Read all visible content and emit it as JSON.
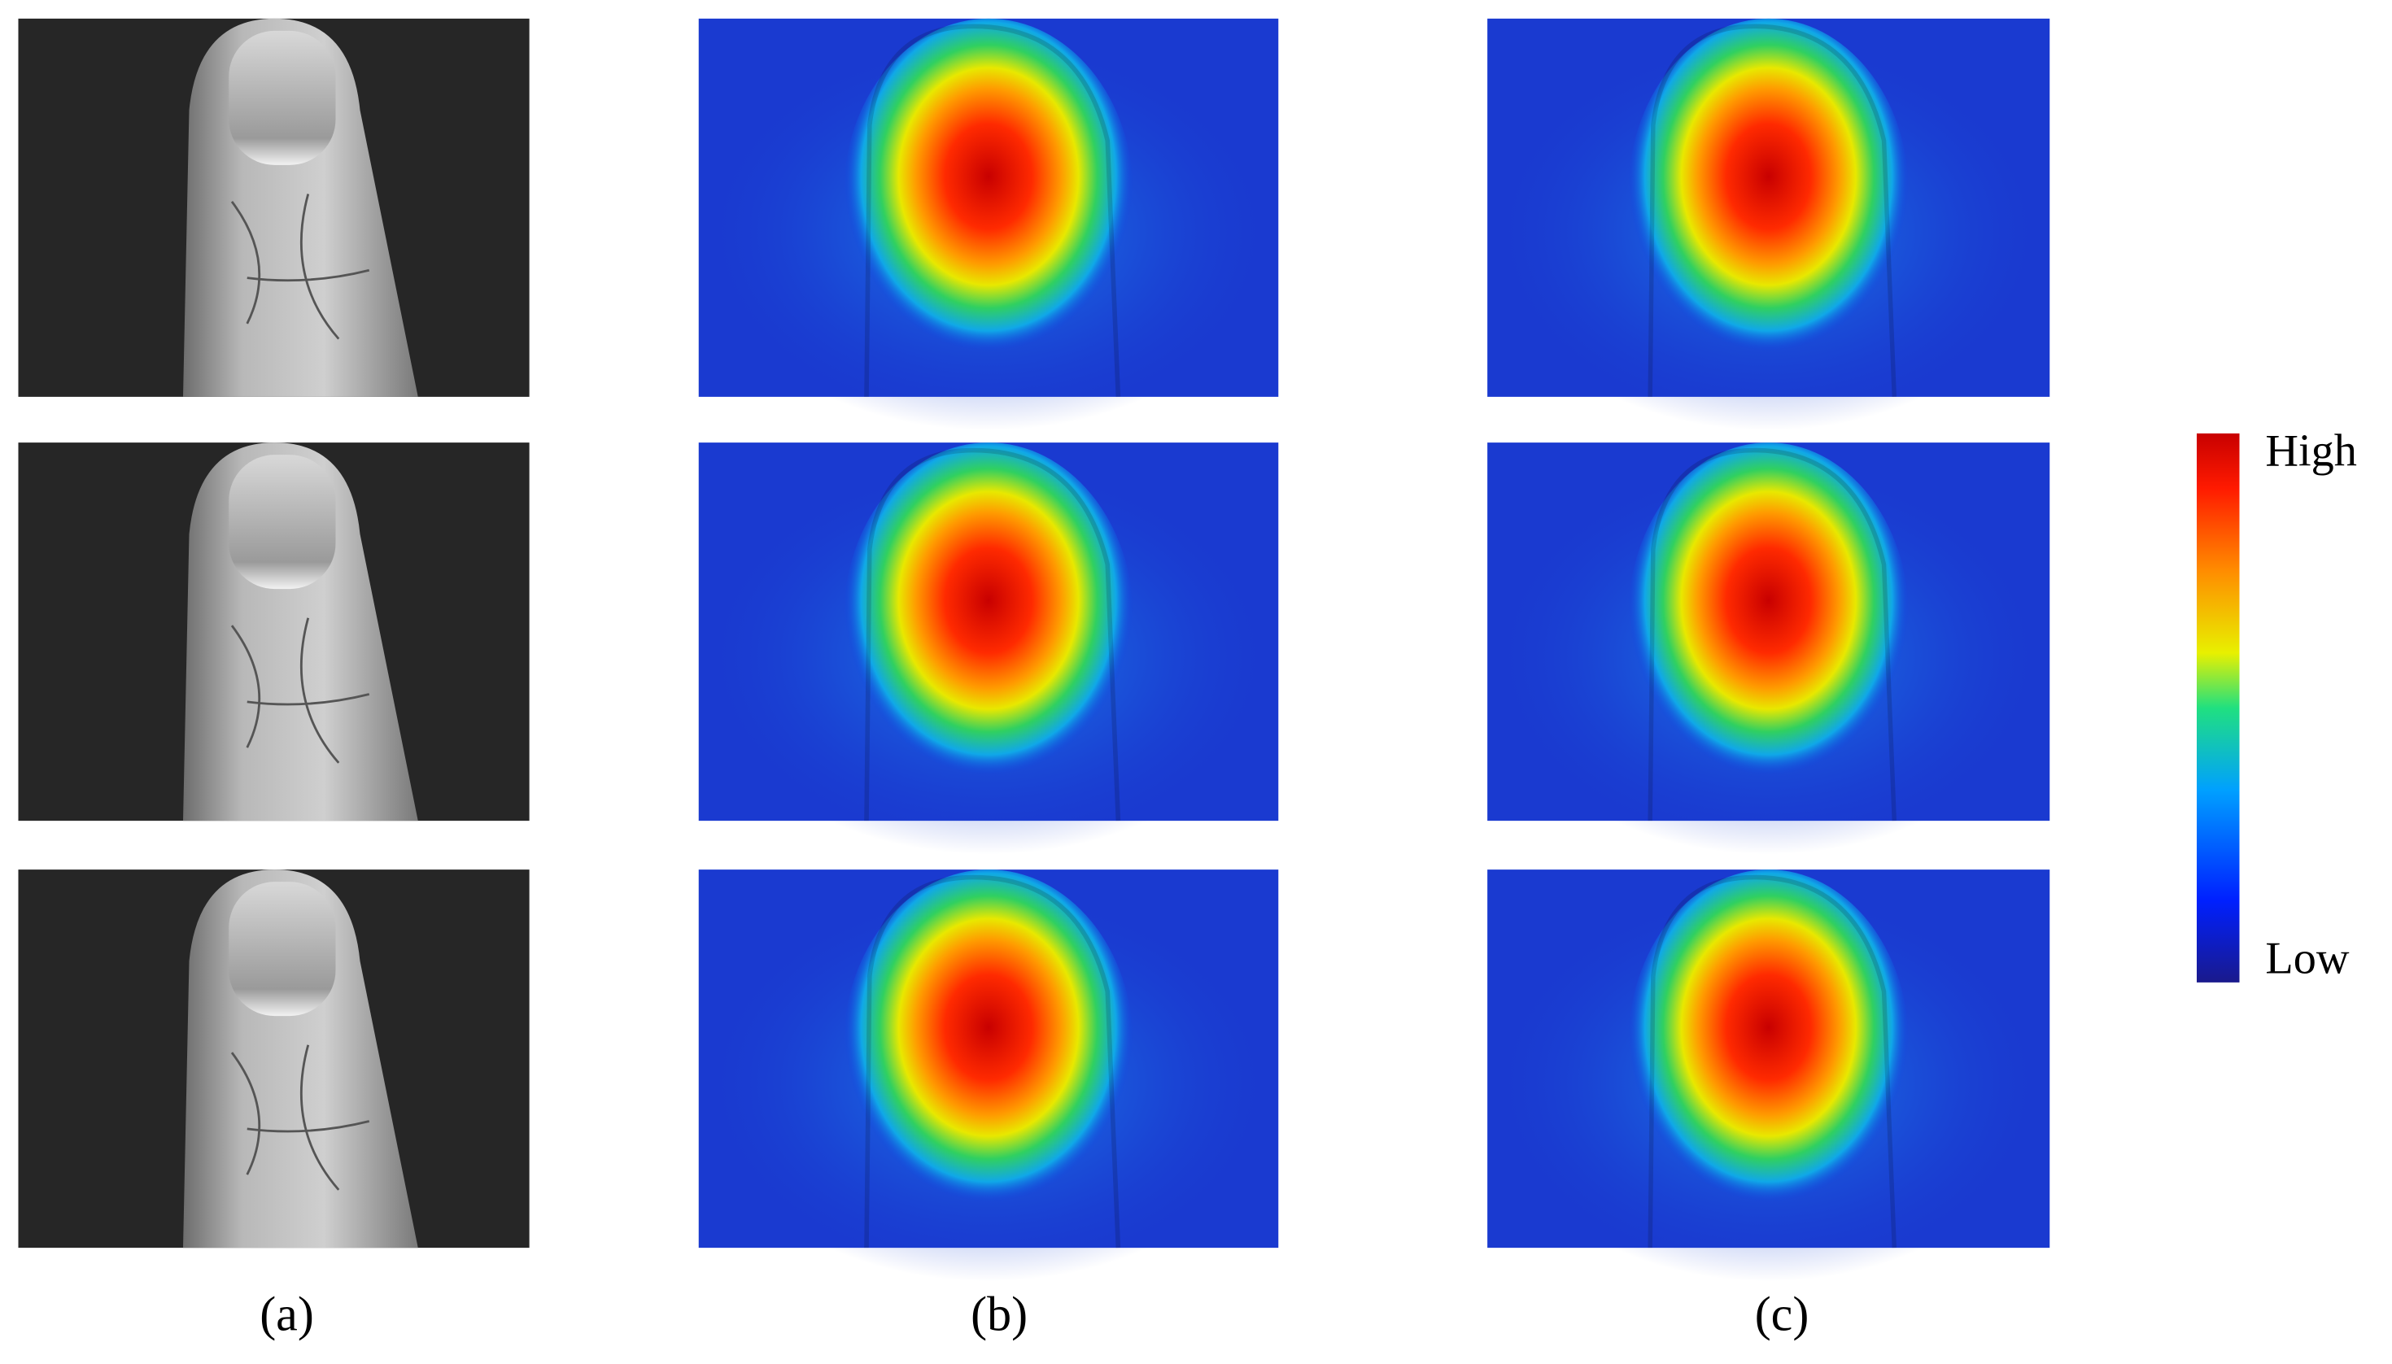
{
  "panels": [
    {
      "label": "(a)"
    },
    {
      "label": "(b)"
    },
    {
      "label": "(c)"
    }
  ],
  "colorbar": {
    "high": "High",
    "low": "Low"
  }
}
